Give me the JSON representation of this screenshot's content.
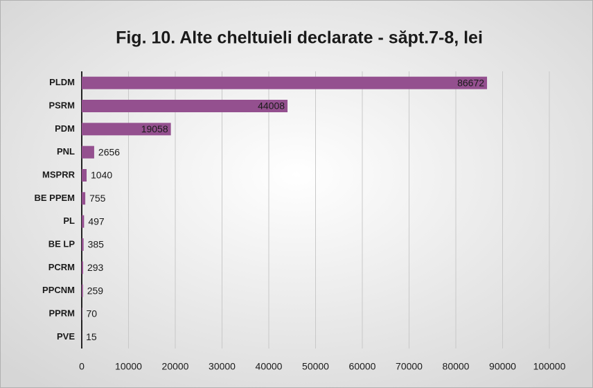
{
  "chart_data": {
    "type": "bar",
    "orientation": "horizontal",
    "title": "Fig. 10. Alte cheltuieli declarate - săpt.7-8, lei",
    "categories": [
      "PLDM",
      "PSRM",
      "PDM",
      "PNL",
      "MSPRR",
      "BE PPEM",
      "PL",
      "BE LP",
      "PCRM",
      "PPCNM",
      "PPRM",
      "PVE"
    ],
    "values": [
      86672,
      44008,
      19058,
      2656,
      1040,
      755,
      497,
      385,
      293,
      259,
      70,
      15
    ],
    "color": "#94508f",
    "xlim": [
      0,
      100000
    ],
    "xticks": [
      0,
      10000,
      20000,
      30000,
      40000,
      50000,
      60000,
      70000,
      80000,
      90000,
      100000
    ],
    "grid": true
  }
}
